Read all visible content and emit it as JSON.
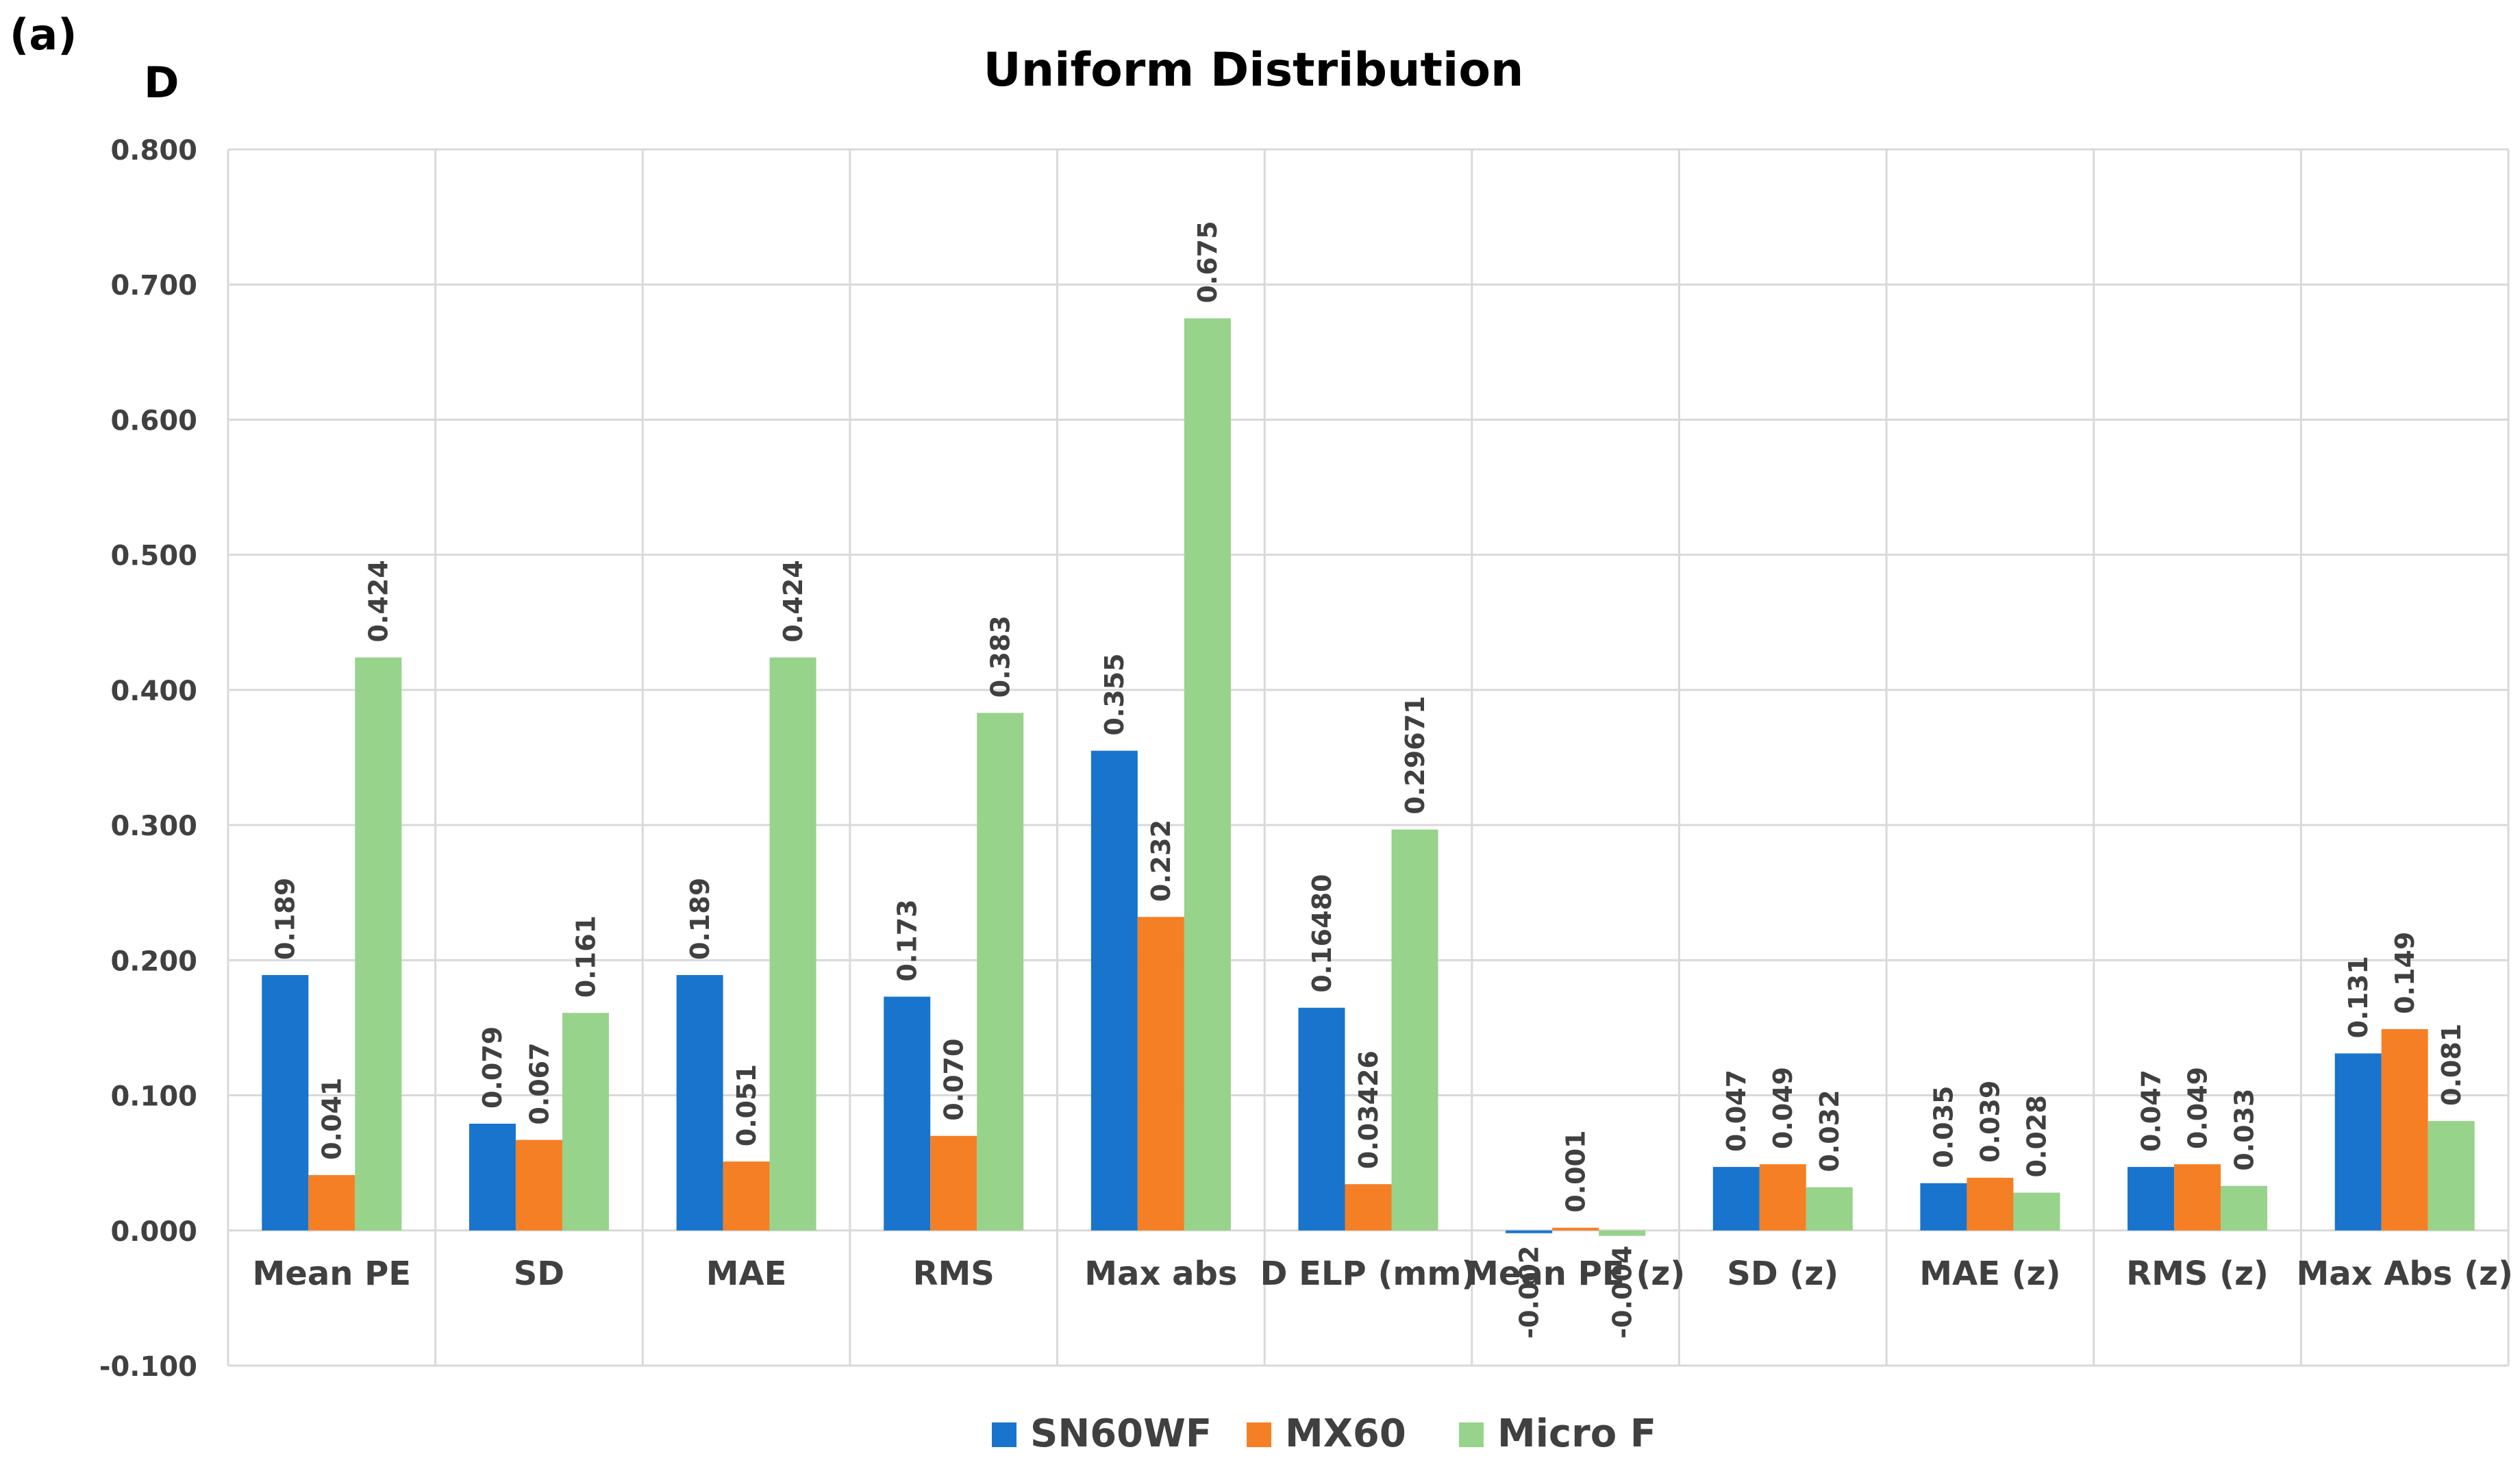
{
  "panel_label": "(a)",
  "subfigure_label": "D",
  "chart_data": {
    "type": "bar",
    "title": "Uniform Distribution",
    "xlabel": "",
    "ylabel": "",
    "ylim": [
      -0.1,
      0.8
    ],
    "ytick_step": 0.1,
    "yticks": [
      "-0.100",
      "0.000",
      "0.100",
      "0.200",
      "0.300",
      "0.400",
      "0.500",
      "0.600",
      "0.700",
      "0.800"
    ],
    "grid": true,
    "legend_position": "bottom",
    "categories": [
      "Mean PE",
      "SD",
      "MAE",
      "RMS",
      "Max abs",
      "D ELP (mm)",
      "Mean PE (z)",
      "SD (z)",
      "MAE (z)",
      "RMS (z)",
      "Max Abs (z)"
    ],
    "series": [
      {
        "name": "SN60WF",
        "color": "#1874CD",
        "values": [
          0.189,
          0.079,
          0.189,
          0.173,
          0.355,
          0.1648,
          -0.002,
          0.047,
          0.035,
          0.047,
          0.131
        ],
        "labels": [
          "0.189",
          "0.079",
          "0.189",
          "0.173",
          "0.355",
          "0.16480",
          "-0.002",
          "0.047",
          "0.035",
          "0.047",
          "0.131"
        ]
      },
      {
        "name": "MX60",
        "color": "#F57F25",
        "values": [
          0.041,
          0.067,
          0.051,
          0.07,
          0.232,
          0.03426,
          0.001,
          0.049,
          0.039,
          0.049,
          0.149
        ],
        "labels": [
          "0.041",
          "0.067",
          "0.051",
          "0.070",
          "0.232",
          "0.03426",
          "0.001",
          "0.049",
          "0.039",
          "0.049",
          "0.149"
        ]
      },
      {
        "name": "Micro F",
        "color": "#97D38A",
        "values": [
          0.424,
          0.161,
          0.424,
          0.383,
          0.675,
          0.29671,
          -0.004,
          0.032,
          0.028,
          0.033,
          0.081
        ],
        "labels": [
          "0.424",
          "0.161",
          "0.424",
          "0.383",
          "0.675",
          "0.29671",
          "-0.004",
          "0.032",
          "0.028",
          "0.033",
          "0.081"
        ]
      }
    ]
  }
}
